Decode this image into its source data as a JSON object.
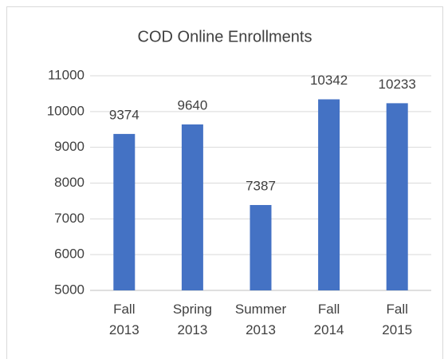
{
  "chart_data": {
    "type": "bar",
    "title": "COD Online Enrollments",
    "categories": [
      "Fall 2013",
      "Spring 2013",
      "Summer 2013",
      "Fall 2014",
      "Fall 2015"
    ],
    "values": [
      9374,
      9640,
      7387,
      10342,
      10233
    ],
    "color": "#4472c4",
    "ylim": [
      5000,
      11000
    ],
    "yticks": [
      5000,
      6000,
      7000,
      8000,
      9000,
      10000,
      11000
    ],
    "grid": true
  }
}
